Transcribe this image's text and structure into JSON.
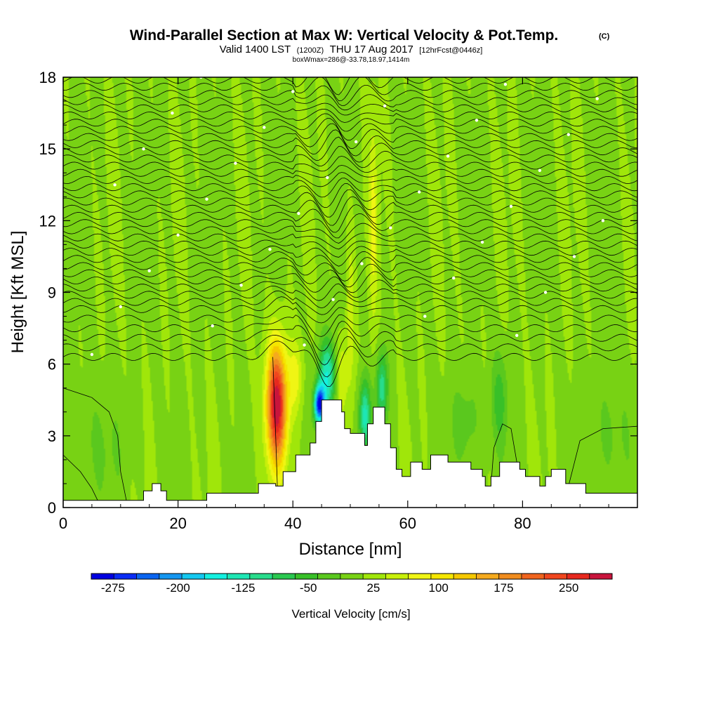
{
  "title": {
    "main": "Wind-Parallel Section at Max W: Vertical Velocity & Pot.Temp.",
    "copyright": "(C)",
    "valid_prefix": "Valid 1400 LST",
    "valid_utc": "(1200Z)",
    "valid_date": "THU 17 Aug 2017",
    "forecast": "[12hrFcst@0446z]",
    "box_info": "boxWmax=286@-33.78,18.97,1414m"
  },
  "chart_data": {
    "type": "heatmap",
    "xlabel": "Distance [nm]",
    "ylabel": "Height [Kft MSL]",
    "xlim": [
      0,
      100
    ],
    "ylim": [
      0,
      18
    ],
    "x_ticks": [
      0,
      20,
      40,
      60,
      80
    ],
    "y_ticks": [
      0,
      3,
      6,
      9,
      12,
      15,
      18
    ],
    "colorbar": {
      "title": "Vertical Velocity [cm/s]",
      "tick_labels": [
        "-275",
        "-200",
        "-125",
        "-50",
        "25",
        "100",
        "175",
        "250"
      ],
      "tick_values": [
        -275,
        -200,
        -125,
        -50,
        25,
        100,
        175,
        250
      ],
      "range": [
        -300,
        300
      ],
      "colors": [
        "#0000e0",
        "#0a2cf5",
        "#0a64f0",
        "#1496f0",
        "#14c8f0",
        "#14f0e0",
        "#1ee6b4",
        "#28dc8c",
        "#2ac850",
        "#38c028",
        "#5ac81e",
        "#78d214",
        "#a0e60a",
        "#c8f00a",
        "#f0f514",
        "#f5e600",
        "#f5c800",
        "#f5aa1e",
        "#f08c1e",
        "#f0641e",
        "#f0461e",
        "#e6281e",
        "#c8143c"
      ]
    },
    "background_velocity": 10,
    "velocity_features": [
      {
        "kind": "updraft",
        "x": 37.2,
        "y": 4.3,
        "w_cms": 286,
        "half_width_nm": 1.8,
        "half_height_kft": 2.5
      },
      {
        "kind": "updraft",
        "x": 40.5,
        "y": 5.5,
        "w_cms": 60,
        "half_width_nm": 1.2,
        "half_height_kft": 1.5
      },
      {
        "kind": "downdraft",
        "x": 44.6,
        "y": 4.3,
        "w_cms": -280,
        "half_width_nm": 0.9,
        "half_height_kft": 0.8
      },
      {
        "kind": "downdraft",
        "x": 46.0,
        "y": 5.5,
        "w_cms": -150,
        "half_width_nm": 1.5,
        "half_height_kft": 1.5
      },
      {
        "kind": "updraft",
        "x": 48.5,
        "y": 5.5,
        "w_cms": 60,
        "half_width_nm": 1.0,
        "half_height_kft": 1.5
      },
      {
        "kind": "downdraft",
        "x": 52.5,
        "y": 3.8,
        "w_cms": -140,
        "half_width_nm": 1.0,
        "half_height_kft": 1.5
      },
      {
        "kind": "downdraft",
        "x": 55.5,
        "y": 5.0,
        "w_cms": -120,
        "half_width_nm": 1.0,
        "half_height_kft": 1.5
      },
      {
        "kind": "updraft",
        "x": 50.0,
        "y": 8.0,
        "w_cms": 50,
        "half_width_nm": 0.7,
        "half_height_kft": 3.5
      },
      {
        "kind": "updraft",
        "x": 54.0,
        "y": 12.0,
        "w_cms": 60,
        "half_width_nm": 0.7,
        "half_height_kft": 4.0
      },
      {
        "kind": "downdraft",
        "x": 76.0,
        "y": 4.5,
        "w_cms": -60,
        "half_width_nm": 1.5,
        "half_height_kft": 2.0
      },
      {
        "kind": "downdraft",
        "x": 70.0,
        "y": 3.5,
        "w_cms": -40,
        "half_width_nm": 2.5,
        "half_height_kft": 2.0
      },
      {
        "kind": "downdraft",
        "x": 5.0,
        "y": 2.5,
        "w_cms": -25,
        "half_width_nm": 6.0,
        "half_height_kft": 2.5
      },
      {
        "kind": "downdraft",
        "x": 95.0,
        "y": 3.0,
        "w_cms": -30,
        "half_width_nm": 4.0,
        "half_height_kft": 2.5
      }
    ],
    "terrain": [
      {
        "x": 0,
        "height_kft": 0.3
      },
      {
        "x": 14,
        "height_kft": 0.3
      },
      {
        "x": 14,
        "height_kft": 0.7
      },
      {
        "x": 15.5,
        "height_kft": 0.7
      },
      {
        "x": 15.5,
        "height_kft": 1.0
      },
      {
        "x": 17,
        "height_kft": 1.0
      },
      {
        "x": 17,
        "height_kft": 0.7
      },
      {
        "x": 18,
        "height_kft": 0.7
      },
      {
        "x": 18,
        "height_kft": 0.3
      },
      {
        "x": 25,
        "height_kft": 0.3
      },
      {
        "x": 25,
        "height_kft": 0.6
      },
      {
        "x": 34,
        "height_kft": 0.6
      },
      {
        "x": 34,
        "height_kft": 1.0
      },
      {
        "x": 37,
        "height_kft": 1.0
      },
      {
        "x": 37,
        "height_kft": 0.9
      },
      {
        "x": 38.3,
        "height_kft": 0.9
      },
      {
        "x": 38.3,
        "height_kft": 1.5
      },
      {
        "x": 40.5,
        "height_kft": 1.5
      },
      {
        "x": 40.5,
        "height_kft": 2.2
      },
      {
        "x": 43,
        "height_kft": 2.2
      },
      {
        "x": 43,
        "height_kft": 2.7
      },
      {
        "x": 44,
        "height_kft": 2.7
      },
      {
        "x": 44,
        "height_kft": 3.6
      },
      {
        "x": 45,
        "height_kft": 3.6
      },
      {
        "x": 45,
        "height_kft": 4.5
      },
      {
        "x": 48.5,
        "height_kft": 4.5
      },
      {
        "x": 48.5,
        "height_kft": 4.0
      },
      {
        "x": 49,
        "height_kft": 4.0
      },
      {
        "x": 49,
        "height_kft": 3.3
      },
      {
        "x": 50,
        "height_kft": 3.3
      },
      {
        "x": 50,
        "height_kft": 3.1
      },
      {
        "x": 52.5,
        "height_kft": 3.1
      },
      {
        "x": 52.5,
        "height_kft": 2.6
      },
      {
        "x": 53,
        "height_kft": 2.6
      },
      {
        "x": 53,
        "height_kft": 3.5
      },
      {
        "x": 54,
        "height_kft": 3.5
      },
      {
        "x": 54,
        "height_kft": 4.2
      },
      {
        "x": 56,
        "height_kft": 4.2
      },
      {
        "x": 56,
        "height_kft": 3.5
      },
      {
        "x": 57,
        "height_kft": 3.5
      },
      {
        "x": 57,
        "height_kft": 2.5
      },
      {
        "x": 58,
        "height_kft": 2.5
      },
      {
        "x": 58,
        "height_kft": 1.6
      },
      {
        "x": 59,
        "height_kft": 1.6
      },
      {
        "x": 59,
        "height_kft": 1.3
      },
      {
        "x": 60.5,
        "height_kft": 1.3
      },
      {
        "x": 60.5,
        "height_kft": 1.9
      },
      {
        "x": 62.5,
        "height_kft": 1.9
      },
      {
        "x": 62.5,
        "height_kft": 1.6
      },
      {
        "x": 64,
        "height_kft": 1.6
      },
      {
        "x": 64,
        "height_kft": 2.2
      },
      {
        "x": 67,
        "height_kft": 2.2
      },
      {
        "x": 67,
        "height_kft": 1.9
      },
      {
        "x": 71,
        "height_kft": 1.9
      },
      {
        "x": 71,
        "height_kft": 1.6
      },
      {
        "x": 73,
        "height_kft": 1.6
      },
      {
        "x": 73,
        "height_kft": 1.3
      },
      {
        "x": 73.5,
        "height_kft": 1.3
      },
      {
        "x": 73.5,
        "height_kft": 0.9
      },
      {
        "x": 74.5,
        "height_kft": 0.9
      },
      {
        "x": 74.5,
        "height_kft": 1.3
      },
      {
        "x": 76,
        "height_kft": 1.3
      },
      {
        "x": 76,
        "height_kft": 1.9
      },
      {
        "x": 79.5,
        "height_kft": 1.9
      },
      {
        "x": 79.5,
        "height_kft": 1.6
      },
      {
        "x": 80.5,
        "height_kft": 1.6
      },
      {
        "x": 80.5,
        "height_kft": 1.3
      },
      {
        "x": 83,
        "height_kft": 1.3
      },
      {
        "x": 83,
        "height_kft": 0.9
      },
      {
        "x": 84,
        "height_kft": 0.9
      },
      {
        "x": 84,
        "height_kft": 1.3
      },
      {
        "x": 85,
        "height_kft": 1.3
      },
      {
        "x": 85,
        "height_kft": 1.6
      },
      {
        "x": 87.5,
        "height_kft": 1.6
      },
      {
        "x": 87.5,
        "height_kft": 1.0
      },
      {
        "x": 91,
        "height_kft": 1.0
      },
      {
        "x": 91,
        "height_kft": 0.6
      },
      {
        "x": 100,
        "height_kft": 0.6
      }
    ],
    "isentrope_levels_kft": [
      6.3,
      6.7,
      7.1,
      7.5,
      7.9,
      8.3,
      8.6,
      8.9,
      9.2,
      9.5,
      9.8,
      10.1,
      10.4,
      10.7,
      11.0,
      11.3,
      11.6,
      11.9,
      12.2,
      12.5,
      12.8,
      13.1,
      13.4,
      13.7,
      14.0,
      14.3,
      14.6,
      14.9,
      15.2,
      15.5,
      15.8,
      16.1,
      16.4,
      16.7,
      17.0,
      17.3,
      17.6,
      17.9
    ]
  }
}
